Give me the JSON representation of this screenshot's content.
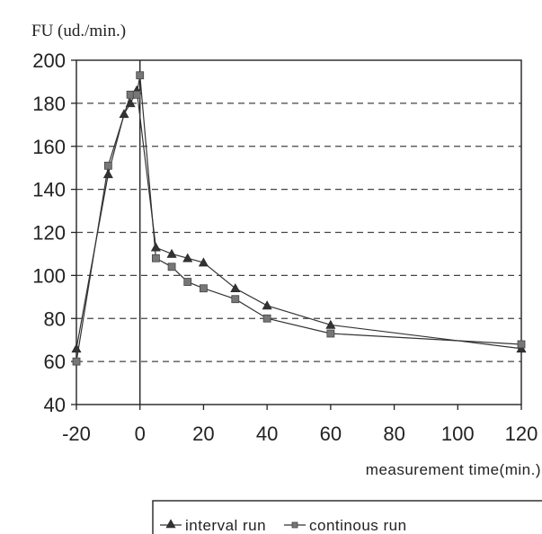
{
  "chart_data": {
    "type": "line",
    "title": "",
    "ylabel": "FU  (ud./min.)",
    "xlabel": "measurement  time(min.)",
    "xlim": [
      -20,
      120
    ],
    "ylim": [
      40,
      200
    ],
    "xticks": [
      -20,
      0,
      20,
      40,
      60,
      80,
      100,
      120
    ],
    "yticks": [
      40,
      60,
      80,
      100,
      120,
      140,
      160,
      180,
      200
    ],
    "grid": "horizontal dashed",
    "legend_position": "bottom",
    "series": [
      {
        "name": "interval run",
        "marker": "triangle",
        "x": [
          -20,
          -10,
          -5,
          -3,
          -1,
          5,
          10,
          15,
          20,
          30,
          40,
          60,
          120
        ],
        "y": [
          66,
          147,
          175,
          180,
          186,
          113,
          110,
          108,
          106,
          94,
          86,
          77,
          66
        ]
      },
      {
        "name": "continous run",
        "marker": "square",
        "x": [
          -20,
          -10,
          -3,
          -1,
          0,
          5,
          10,
          15,
          20,
          30,
          40,
          60,
          120
        ],
        "y": [
          60,
          151,
          184,
          184,
          193,
          108,
          104,
          97,
          94,
          89,
          80,
          73,
          68
        ]
      }
    ]
  },
  "legend": {
    "items": [
      {
        "label": "interval run",
        "marker_icon": "triangle-marker-icon"
      },
      {
        "label": "continous run",
        "marker_icon": "square-marker-icon"
      }
    ]
  },
  "colors": {
    "line": "#333333",
    "grid": "#444444",
    "axis": "#222222"
  }
}
